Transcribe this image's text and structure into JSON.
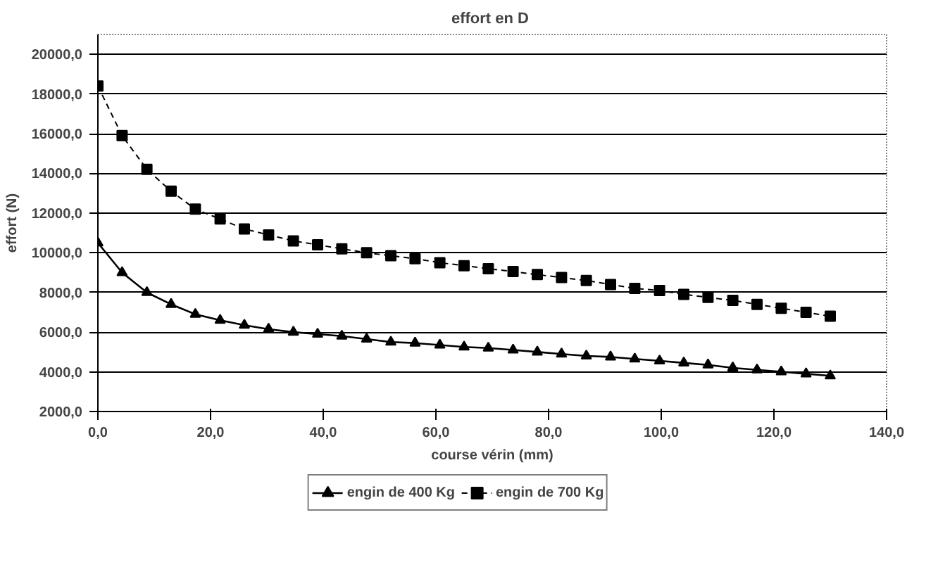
{
  "chart_data": {
    "type": "line",
    "title": "effort  en D",
    "xlabel": "course vérin (mm)",
    "ylabel": "effort (N)",
    "x": [
      0,
      4.3,
      8.7,
      13,
      17.3,
      21.7,
      26,
      30.3,
      34.7,
      39,
      43.3,
      47.7,
      52,
      56.3,
      60.7,
      65,
      69.3,
      73.7,
      78,
      82.3,
      86.7,
      91,
      95.3,
      99.7,
      104,
      108.3,
      112.7,
      117,
      121.3,
      125.7,
      130
    ],
    "series": [
      {
        "name": "engin de 400 Kg",
        "color": "#000000",
        "marker": "triangle",
        "line_style": "solid",
        "values": [
          10500,
          9000,
          8000,
          7400,
          6900,
          6600,
          6350,
          6150,
          6000,
          5900,
          5800,
          5650,
          5500,
          5450,
          5350,
          5250,
          5200,
          5100,
          5000,
          4900,
          4800,
          4750,
          4650,
          4550,
          4450,
          4350,
          4200,
          4100,
          4000,
          3900,
          3800
        ]
      },
      {
        "name": "engin de 700 Kg",
        "color": "#000000",
        "marker": "square",
        "line_style": "dashed",
        "values": [
          18400,
          15900,
          14200,
          13100,
          12200,
          11700,
          11200,
          10900,
          10600,
          10400,
          10200,
          10000,
          9850,
          9700,
          9500,
          9350,
          9200,
          9050,
          8900,
          8750,
          8600,
          8400,
          8200,
          8100,
          7900,
          7750,
          7600,
          7400,
          7200,
          7000,
          6800
        ]
      }
    ],
    "xlim": [
      0,
      140
    ],
    "ylim": [
      2000,
      21000
    ],
    "xticks": [
      {
        "value": 0,
        "label": "0,0"
      },
      {
        "value": 20,
        "label": "20,0"
      },
      {
        "value": 40,
        "label": "40,0"
      },
      {
        "value": 60,
        "label": "60,0"
      },
      {
        "value": 80,
        "label": "80,0"
      },
      {
        "value": 100,
        "label": "100,0"
      },
      {
        "value": 120,
        "label": "120,0"
      },
      {
        "value": 140,
        "label": "140,0"
      }
    ],
    "yticks": [
      {
        "value": 2000,
        "label": "2000,0"
      },
      {
        "value": 4000,
        "label": "4000,0"
      },
      {
        "value": 6000,
        "label": "6000,0"
      },
      {
        "value": 8000,
        "label": "8000,0"
      },
      {
        "value": 10000,
        "label": "10000,0"
      },
      {
        "value": 12000,
        "label": "12000,0"
      },
      {
        "value": 14000,
        "label": "14000,0"
      },
      {
        "value": 16000,
        "label": "16000,0"
      },
      {
        "value": 18000,
        "label": "18000,0"
      },
      {
        "value": 20000,
        "label": "20000,0"
      }
    ],
    "grid": "y",
    "legend": "bottom"
  }
}
